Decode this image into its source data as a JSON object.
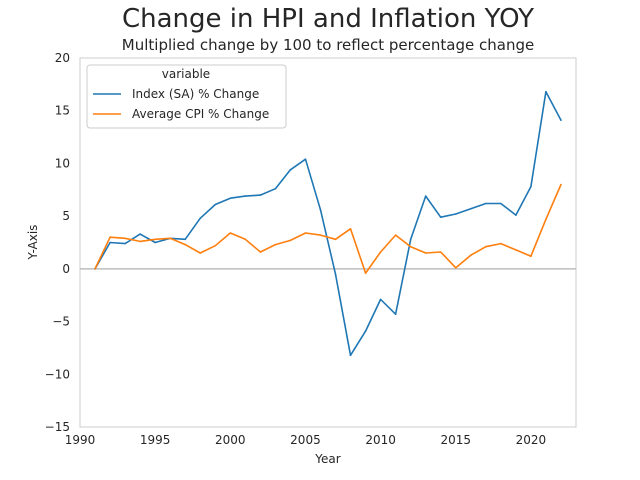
{
  "chart_data": {
    "type": "line",
    "title": "Change in HPI and Inflation YOY",
    "subtitle": "Multiplied change by 100 to reflect percentage change",
    "xlabel": "Year",
    "ylabel": "Y-Axis",
    "xlim": [
      1990,
      2023
    ],
    "ylim": [
      -15,
      20
    ],
    "xticks": [
      "1990",
      "1995",
      "2000",
      "2005",
      "2010",
      "2015",
      "2020"
    ],
    "yticks": [
      "−15",
      "−10",
      "−5",
      "0",
      "5",
      "10",
      "15",
      "20"
    ],
    "grid": false,
    "zero_line": 0,
    "legend": {
      "title": "variable",
      "position": "top-left"
    },
    "x": [
      1991,
      1992,
      1993,
      1994,
      1995,
      1996,
      1997,
      1998,
      1999,
      2000,
      2001,
      2002,
      2003,
      2004,
      2005,
      2006,
      2007,
      2008,
      2009,
      2010,
      2011,
      2012,
      2013,
      2014,
      2015,
      2016,
      2017,
      2018,
      2019,
      2020,
      2021,
      2022
    ],
    "series": [
      {
        "name": "Index (SA) % Change",
        "color": "#1f77b4",
        "values": [
          0,
          2.5,
          2.4,
          3.3,
          2.5,
          2.9,
          2.8,
          4.8,
          6.1,
          6.7,
          6.9,
          7.0,
          7.6,
          9.4,
          10.4,
          5.6,
          -0.5,
          -8.2,
          -5.9,
          -2.9,
          -4.3,
          2.8,
          6.9,
          4.9,
          5.2,
          5.7,
          6.2,
          6.2,
          5.1,
          7.8,
          16.8,
          14.1
        ]
      },
      {
        "name": "Average CPI % Change",
        "color": "#ff7f0e",
        "values": [
          0,
          3.0,
          2.9,
          2.6,
          2.8,
          2.9,
          2.3,
          1.5,
          2.2,
          3.4,
          2.8,
          1.6,
          2.3,
          2.7,
          3.4,
          3.2,
          2.8,
          3.8,
          -0.4,
          1.6,
          3.2,
          2.1,
          1.5,
          1.6,
          0.1,
          1.3,
          2.1,
          2.4,
          1.8,
          1.2,
          4.7,
          8.0
        ]
      }
    ]
  }
}
